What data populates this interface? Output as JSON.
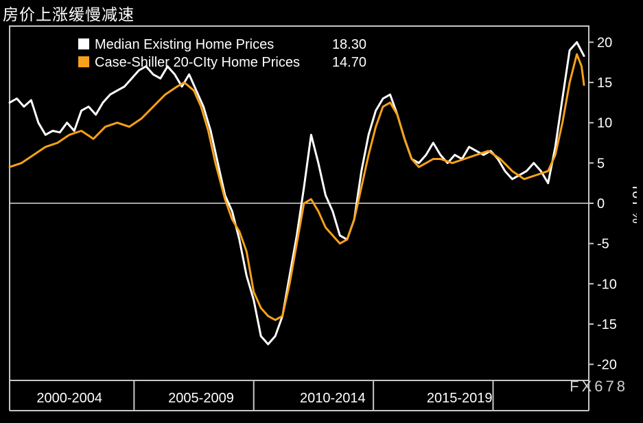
{
  "title": "房价上涨缓慢减速",
  "footer_brand": "FX678",
  "chart": {
    "type": "line",
    "background_color": "#000000",
    "axis_color": "#c8c8c8",
    "zero_line_color": "#dddddd",
    "line_width": 3,
    "x": {
      "min": 1998.0,
      "max": 2022.2,
      "ticks_major": [
        1998,
        2003.2,
        2008.2,
        2013.2,
        2018.2
      ],
      "group_labels": [
        {
          "label": "2000-2004",
          "x": 2000.5
        },
        {
          "label": "2005-2009",
          "x": 2006.0
        },
        {
          "label": "2010-2014",
          "x": 2011.5
        },
        {
          "label": "2015-2019",
          "x": 2016.8
        }
      ],
      "label_fontsize": 20
    },
    "y": {
      "min": -22,
      "max": 22,
      "ticks": [
        -20,
        -15,
        -10,
        -5,
        0,
        5,
        10,
        15,
        20
      ],
      "label": "YoY %",
      "label_fontsize": 20
    },
    "legend": {
      "position": "top-left-inner",
      "items": [
        {
          "name": "Median Existing Home Prices",
          "value": "18.30",
          "color": "#ffffff",
          "marker_color": "#ffffff"
        },
        {
          "name": "Case-Shiller 20-CIty Home Prices",
          "value": "14.70",
          "color": "#f7a11a",
          "marker_color": "#f7a11a"
        }
      ]
    },
    "series": [
      {
        "name": "Median Existing Home Prices",
        "color": "#ffffff",
        "points": [
          [
            1998.0,
            12.5
          ],
          [
            1998.3,
            13.0
          ],
          [
            1998.6,
            12.0
          ],
          [
            1998.9,
            12.8
          ],
          [
            1999.2,
            10.0
          ],
          [
            1999.5,
            8.5
          ],
          [
            1999.8,
            9.0
          ],
          [
            2000.1,
            8.8
          ],
          [
            2000.4,
            10.0
          ],
          [
            2000.7,
            9.0
          ],
          [
            2001.0,
            11.5
          ],
          [
            2001.3,
            12.0
          ],
          [
            2001.6,
            11.0
          ],
          [
            2001.9,
            12.5
          ],
          [
            2002.2,
            13.5
          ],
          [
            2002.5,
            14.0
          ],
          [
            2002.8,
            14.5
          ],
          [
            2003.1,
            15.5
          ],
          [
            2003.4,
            16.5
          ],
          [
            2003.7,
            17.0
          ],
          [
            2004.0,
            16.0
          ],
          [
            2004.3,
            15.5
          ],
          [
            2004.6,
            17.0
          ],
          [
            2004.9,
            16.0
          ],
          [
            2005.2,
            14.5
          ],
          [
            2005.5,
            16.0
          ],
          [
            2005.8,
            14.0
          ],
          [
            2006.1,
            12.0
          ],
          [
            2006.4,
            9.0
          ],
          [
            2006.7,
            5.0
          ],
          [
            2007.0,
            1.0
          ],
          [
            2007.3,
            -1.0
          ],
          [
            2007.6,
            -4.5
          ],
          [
            2007.9,
            -9.0
          ],
          [
            2008.2,
            -12.0
          ],
          [
            2008.5,
            -16.5
          ],
          [
            2008.8,
            -17.5
          ],
          [
            2009.1,
            -16.5
          ],
          [
            2009.4,
            -14.0
          ],
          [
            2009.7,
            -9.0
          ],
          [
            2010.0,
            -4.0
          ],
          [
            2010.3,
            2.0
          ],
          [
            2010.6,
            8.5
          ],
          [
            2010.9,
            5.0
          ],
          [
            2011.2,
            1.0
          ],
          [
            2011.5,
            -1.0
          ],
          [
            2011.8,
            -4.0
          ],
          [
            2012.1,
            -4.5
          ],
          [
            2012.4,
            -2.0
          ],
          [
            2012.7,
            4.0
          ],
          [
            2013.0,
            8.5
          ],
          [
            2013.3,
            11.5
          ],
          [
            2013.6,
            13.0
          ],
          [
            2013.9,
            13.5
          ],
          [
            2014.2,
            11.0
          ],
          [
            2014.5,
            8.0
          ],
          [
            2014.8,
            5.5
          ],
          [
            2015.1,
            5.0
          ],
          [
            2015.4,
            6.0
          ],
          [
            2015.7,
            7.5
          ],
          [
            2016.0,
            6.0
          ],
          [
            2016.3,
            5.0
          ],
          [
            2016.6,
            6.0
          ],
          [
            2016.9,
            5.5
          ],
          [
            2017.2,
            7.0
          ],
          [
            2017.5,
            6.5
          ],
          [
            2017.8,
            6.0
          ],
          [
            2018.1,
            6.5
          ],
          [
            2018.4,
            5.5
          ],
          [
            2018.7,
            4.0
          ],
          [
            2019.0,
            3.0
          ],
          [
            2019.3,
            3.5
          ],
          [
            2019.6,
            4.0
          ],
          [
            2019.9,
            5.0
          ],
          [
            2020.2,
            4.0
          ],
          [
            2020.5,
            2.5
          ],
          [
            2020.8,
            7.0
          ],
          [
            2021.1,
            13.0
          ],
          [
            2021.4,
            19.0
          ],
          [
            2021.7,
            20.0
          ],
          [
            2022.0,
            18.3
          ]
        ]
      },
      {
        "name": "Case-Shiller 20-CIty Home Prices",
        "color": "#f7a11a",
        "points": [
          [
            1998.0,
            4.5
          ],
          [
            1998.5,
            5.0
          ],
          [
            1999.0,
            6.0
          ],
          [
            1999.5,
            7.0
          ],
          [
            2000.0,
            7.5
          ],
          [
            2000.5,
            8.5
          ],
          [
            2001.0,
            9.0
          ],
          [
            2001.5,
            8.0
          ],
          [
            2002.0,
            9.5
          ],
          [
            2002.5,
            10.0
          ],
          [
            2003.0,
            9.5
          ],
          [
            2003.5,
            10.5
          ],
          [
            2004.0,
            12.0
          ],
          [
            2004.5,
            13.5
          ],
          [
            2005.0,
            14.5
          ],
          [
            2005.3,
            15.0
          ],
          [
            2005.7,
            14.0
          ],
          [
            2006.0,
            12.0
          ],
          [
            2006.3,
            9.0
          ],
          [
            2006.6,
            5.0
          ],
          [
            2007.0,
            0.5
          ],
          [
            2007.3,
            -2.0
          ],
          [
            2007.6,
            -3.5
          ],
          [
            2007.9,
            -6.0
          ],
          [
            2008.2,
            -11.0
          ],
          [
            2008.5,
            -13.0
          ],
          [
            2008.8,
            -14.0
          ],
          [
            2009.1,
            -14.5
          ],
          [
            2009.4,
            -14.0
          ],
          [
            2009.7,
            -10.0
          ],
          [
            2010.0,
            -5.0
          ],
          [
            2010.3,
            0.0
          ],
          [
            2010.6,
            0.5
          ],
          [
            2010.9,
            -1.0
          ],
          [
            2011.2,
            -3.0
          ],
          [
            2011.5,
            -4.0
          ],
          [
            2011.8,
            -5.0
          ],
          [
            2012.1,
            -4.5
          ],
          [
            2012.4,
            -2.0
          ],
          [
            2012.7,
            2.0
          ],
          [
            2013.0,
            6.0
          ],
          [
            2013.3,
            9.5
          ],
          [
            2013.6,
            12.0
          ],
          [
            2013.9,
            12.5
          ],
          [
            2014.2,
            11.0
          ],
          [
            2014.5,
            8.0
          ],
          [
            2014.8,
            5.5
          ],
          [
            2015.1,
            4.5
          ],
          [
            2015.4,
            5.0
          ],
          [
            2015.7,
            5.5
          ],
          [
            2016.0,
            5.5
          ],
          [
            2016.5,
            5.0
          ],
          [
            2017.0,
            5.5
          ],
          [
            2017.5,
            6.0
          ],
          [
            2018.0,
            6.5
          ],
          [
            2018.5,
            5.5
          ],
          [
            2019.0,
            4.0
          ],
          [
            2019.5,
            3.0
          ],
          [
            2020.0,
            3.5
          ],
          [
            2020.5,
            4.0
          ],
          [
            2020.8,
            6.0
          ],
          [
            2021.1,
            10.0
          ],
          [
            2021.4,
            15.0
          ],
          [
            2021.7,
            18.5
          ],
          [
            2021.9,
            17.0
          ],
          [
            2022.0,
            14.7
          ]
        ]
      }
    ]
  }
}
